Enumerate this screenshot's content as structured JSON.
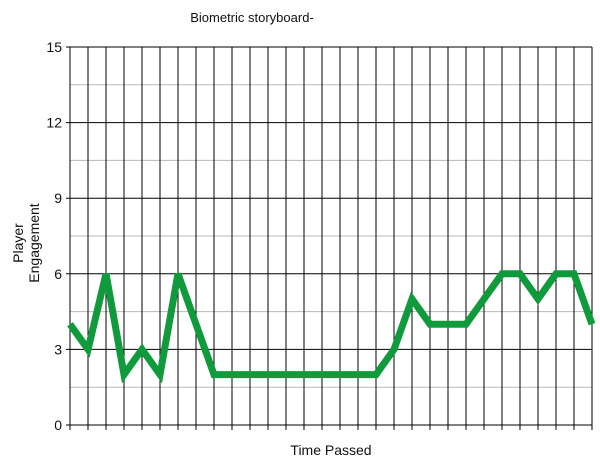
{
  "chart_data": {
    "type": "line",
    "title": "Biometric storyboard-",
    "xlabel": "Time Passed",
    "ylabel_lines": [
      "Player",
      "Engagement"
    ],
    "ylim": [
      0,
      15
    ],
    "yticks": [
      0,
      3,
      6,
      9,
      12,
      15
    ],
    "minor_y_step": 1.5,
    "x": [
      0,
      1,
      2,
      3,
      4,
      5,
      6,
      7,
      8,
      9,
      10,
      11,
      12,
      13,
      14,
      15,
      16,
      17,
      18,
      19,
      20,
      21,
      22,
      23,
      24,
      25,
      26,
      27,
      28,
      29
    ],
    "xlim": [
      0,
      29
    ],
    "series": [
      {
        "values": [
          4,
          3,
          6,
          2,
          3,
          2,
          6,
          4,
          2,
          2,
          2,
          2,
          2,
          2,
          2,
          2,
          2,
          2,
          3,
          5,
          4,
          4,
          4,
          5,
          6,
          6,
          5,
          6,
          6,
          4
        ],
        "color": "#0f9a3c"
      }
    ],
    "grid": true,
    "legend": "none"
  }
}
